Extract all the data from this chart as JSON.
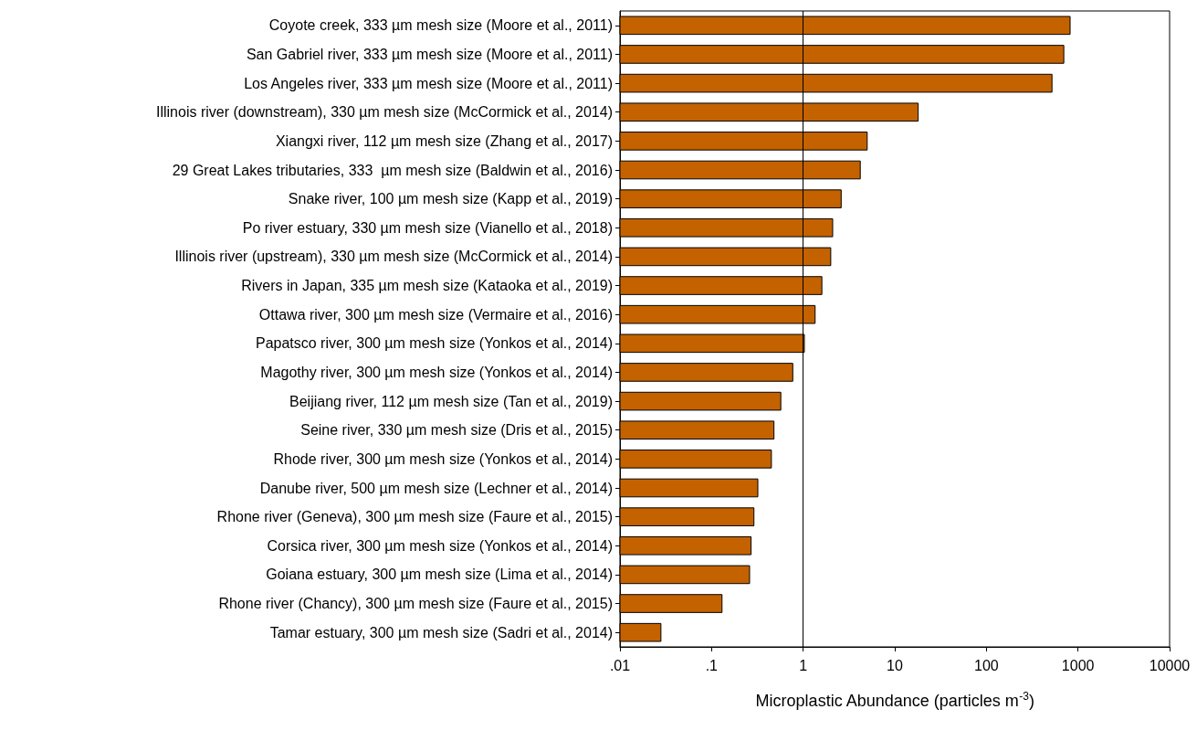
{
  "chart_data": {
    "type": "bar",
    "orientation": "horizontal",
    "log": "x",
    "xlabel": "Microplastic Abundance (particles m$^{-3}$)",
    "categories": [
      "Coyote creek, 333 µm mesh size (Moore et al., 2011)",
      "San Gabriel river, 333 µm mesh size (Moore et al., 2011)",
      "Los Angeles river, 333 µm mesh size (Moore et al., 2011)",
      "Illinois river (downstream), 330 µm mesh size (McCormick et al., 2014)",
      "Xiangxi river, 112 µm mesh size (Zhang et al., 2017)",
      "29 Great Lakes tributaries, 333  µm mesh size (Baldwin et al., 2016)",
      "Snake river, 100 µm mesh size (Kapp et al., 2019)",
      "Po river estuary, 330 µm mesh size (Vianello et al., 2018)",
      "Illinois river (upstream), 330 µm mesh size (McCormick et al., 2014)",
      "Rivers in Japan, 335 µm mesh size (Kataoka et al., 2019)",
      "Ottawa river, 300 µm mesh size (Vermaire et al., 2016)",
      "Papatsco river, 300 µm mesh size (Yonkos et al., 2014)",
      "Magothy river, 300 µm mesh size (Yonkos et al., 2014)",
      "Beijiang river, 112 µm mesh size (Tan et al., 2019)",
      "Seine river, 330 µm mesh size (Dris et al., 2015)",
      "Rhode river, 300 µm mesh size (Yonkos et al., 2014)",
      "Danube river, 500 µm mesh size (Lechner et al., 2014)",
      "Rhone river (Geneva), 300 µm mesh size (Faure et al., 2015)",
      "Corsica river, 300 µm mesh size (Yonkos et al., 2014)",
      "Goiana estuary, 300 µm mesh size (Lima et al., 2014)",
      "Rhone river (Chancy), 300 µm mesh size (Faure et al., 2015)",
      "Tamar estuary, 300 µm mesh size (Sadri et al., 2014)"
    ],
    "values": [
      820,
      700,
      520,
      18,
      5,
      4.2,
      2.6,
      2.1,
      2,
      1.6,
      1.35,
      1.03,
      0.77,
      0.57,
      0.48,
      0.45,
      0.32,
      0.29,
      0.27,
      0.26,
      0.13,
      0.028
    ],
    "color": "#c46200",
    "xlim": [
      0.01,
      10000
    ],
    "xticks": [
      {
        "value": 0.01,
        "label": ".01"
      },
      {
        "value": 0.1,
        "label": ".1"
      },
      1,
      10,
      100,
      1000,
      10000
    ],
    "ref_lines": [
      {
        "axis": "x",
        "value": 1,
        "color": "#000000"
      }
    ],
    "grid": false
  }
}
